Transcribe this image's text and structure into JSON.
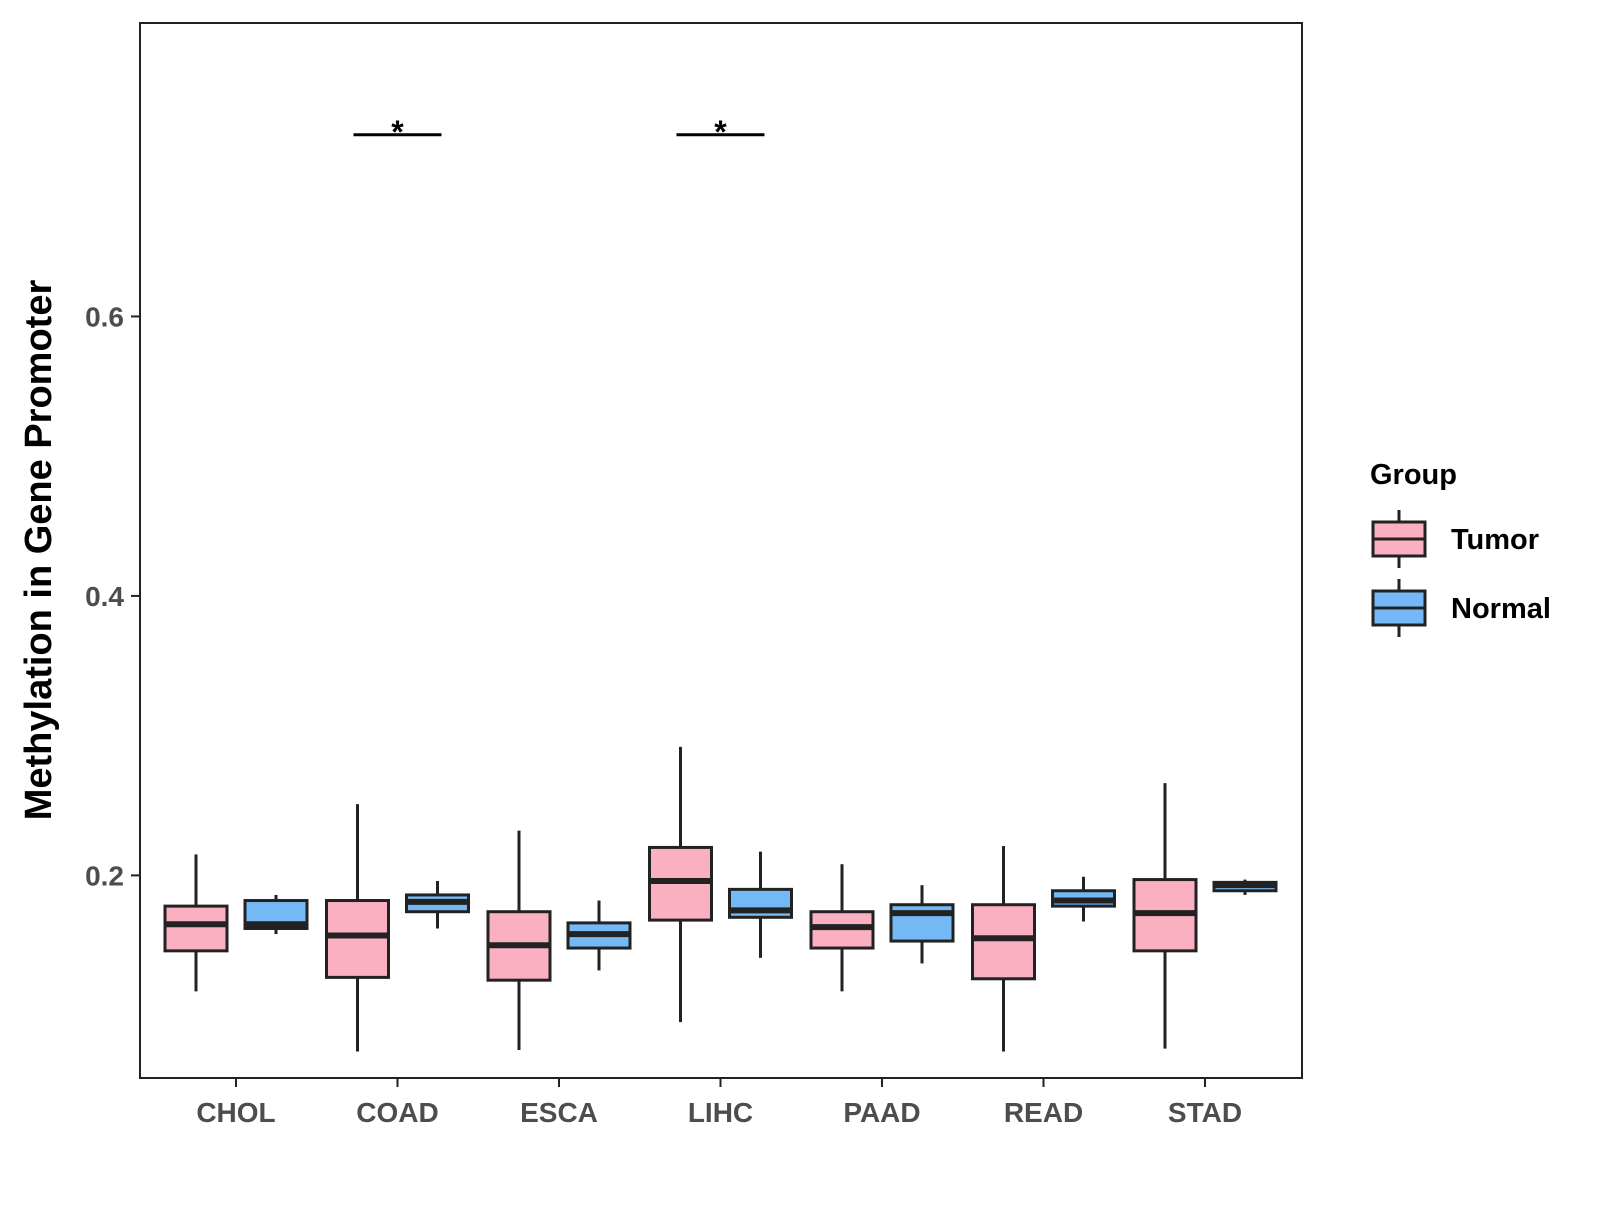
{
  "chart_data": {
    "type": "boxplot",
    "title": "",
    "xlabel": "",
    "ylabel": "Methylation in Gene Promoter",
    "ylim": [
      0.055,
      0.81
    ],
    "yticks": [
      0.2,
      0.4,
      0.6
    ],
    "ytick_labels": [
      "0.2",
      "0.4",
      "0.6"
    ],
    "grid": false,
    "categories": [
      "CHOL",
      "COAD",
      "ESCA",
      "LIHC",
      "PAAD",
      "READ",
      "STAD"
    ],
    "legend": {
      "title": "Group",
      "placement": "right",
      "entries": [
        {
          "name": "Tumor",
          "color": "#fbb0c2"
        },
        {
          "name": "Normal",
          "color": "#74b9f5"
        }
      ]
    },
    "series": [
      {
        "name": "Tumor",
        "color": "#fbb0c2",
        "boxes": [
          {
            "category": "CHOL",
            "min": 0.117,
            "q1": 0.146,
            "median": 0.165,
            "q3": 0.178,
            "max": 0.215
          },
          {
            "category": "COAD",
            "min": 0.074,
            "q1": 0.127,
            "median": 0.157,
            "q3": 0.182,
            "max": 0.251
          },
          {
            "category": "ESCA",
            "min": 0.075,
            "q1": 0.125,
            "median": 0.15,
            "q3": 0.174,
            "max": 0.232
          },
          {
            "category": "LIHC",
            "min": 0.095,
            "q1": 0.168,
            "median": 0.196,
            "q3": 0.22,
            "max": 0.292
          },
          {
            "category": "PAAD",
            "min": 0.117,
            "q1": 0.148,
            "median": 0.163,
            "q3": 0.174,
            "max": 0.208
          },
          {
            "category": "READ",
            "min": 0.074,
            "q1": 0.126,
            "median": 0.155,
            "q3": 0.179,
            "max": 0.221
          },
          {
            "category": "STAD",
            "min": 0.076,
            "q1": 0.146,
            "median": 0.173,
            "q3": 0.197,
            "max": 0.266
          }
        ]
      },
      {
        "name": "Normal",
        "color": "#74b9f5",
        "boxes": [
          {
            "category": "CHOL",
            "min": 0.158,
            "q1": 0.162,
            "median": 0.165,
            "q3": 0.182,
            "max": 0.186
          },
          {
            "category": "COAD",
            "min": 0.162,
            "q1": 0.174,
            "median": 0.181,
            "q3": 0.186,
            "max": 0.196
          },
          {
            "category": "ESCA",
            "min": 0.132,
            "q1": 0.148,
            "median": 0.158,
            "q3": 0.166,
            "max": 0.182
          },
          {
            "category": "LIHC",
            "min": 0.141,
            "q1": 0.17,
            "median": 0.175,
            "q3": 0.19,
            "max": 0.217
          },
          {
            "category": "PAAD",
            "min": 0.137,
            "q1": 0.153,
            "median": 0.173,
            "q3": 0.179,
            "max": 0.193
          },
          {
            "category": "READ",
            "min": 0.167,
            "q1": 0.178,
            "median": 0.182,
            "q3": 0.189,
            "max": 0.199
          },
          {
            "category": "STAD",
            "min": 0.186,
            "q1": 0.189,
            "median": 0.193,
            "q3": 0.195,
            "max": 0.197
          }
        ]
      }
    ],
    "significance": [
      {
        "category": "COAD",
        "label": "*",
        "y": 0.73
      },
      {
        "category": "LIHC",
        "label": "*",
        "y": 0.73
      }
    ],
    "colors": {
      "tumor": "#fbb0c2",
      "normal": "#74b9f5",
      "outline": "#222222",
      "tick_text": "#4d4d4d"
    }
  }
}
